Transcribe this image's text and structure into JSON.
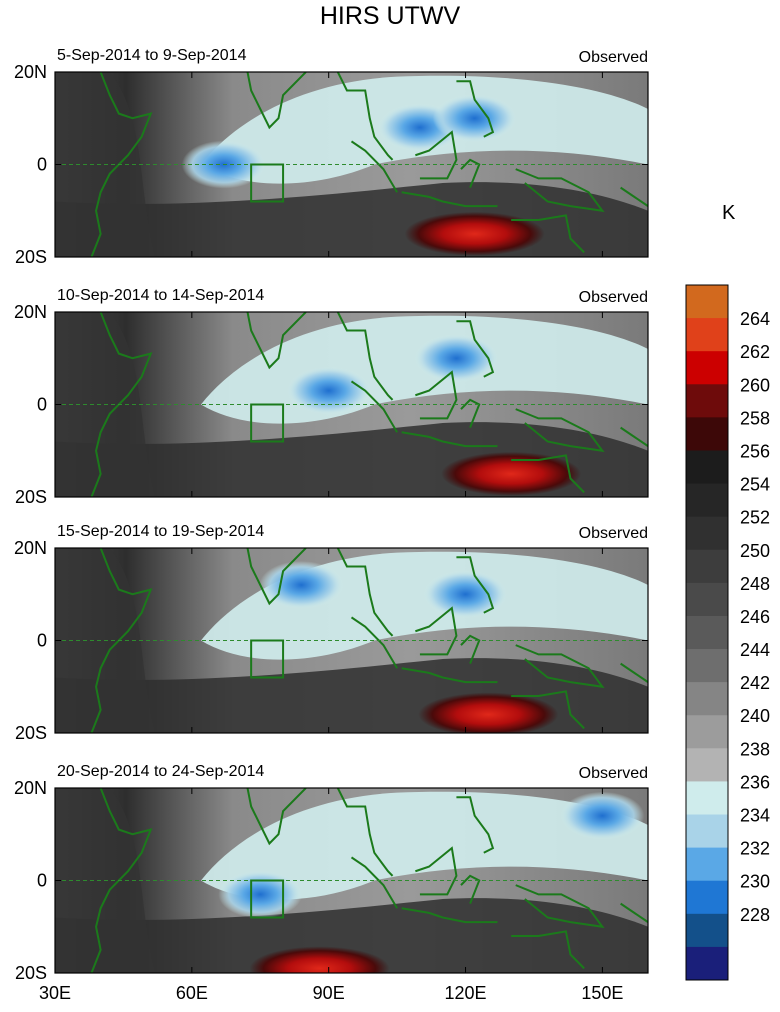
{
  "title": "HIRS UTWV",
  "units_label": "K",
  "x_ticks": [
    "30E",
    "60E",
    "90E",
    "120E",
    "150E"
  ],
  "x_tick_lon": [
    30,
    60,
    90,
    120,
    150
  ],
  "y_ticks": [
    "20N",
    "0",
    "20S"
  ],
  "y_tick_lat": [
    20,
    0,
    -20
  ],
  "panels": [
    {
      "period": "5-Sep-2014 to 9-Sep-2014",
      "tag": "Observed"
    },
    {
      "period": "10-Sep-2014 to 14-Sep-2014",
      "tag": "Observed"
    },
    {
      "period": "15-Sep-2014 to 19-Sep-2014",
      "tag": "Observed"
    },
    {
      "period": "20-Sep-2014 to 24-Sep-2014",
      "tag": "Observed"
    }
  ],
  "colorbar": {
    "labels": [
      "264",
      "262",
      "260",
      "258",
      "256",
      "254",
      "252",
      "250",
      "248",
      "246",
      "244",
      "242",
      "240",
      "238",
      "236",
      "234",
      "232",
      "230",
      "228"
    ],
    "colors": [
      "#d2691e",
      "#e0411a",
      "#cc0000",
      "#6e0b0b",
      "#3d0808",
      "#1c1c1c",
      "#262626",
      "#303030",
      "#3d3d3d",
      "#4a4a4a",
      "#5a5a5a",
      "#6e6e6e",
      "#858585",
      "#9c9c9c",
      "#b3b3b3",
      "#cfecec",
      "#a9d3e8",
      "#5aa8e6",
      "#1f77d4",
      "#13508a",
      "#1a1f7a"
    ]
  },
  "chart_data": {
    "type": "heatmap",
    "title": "HIRS UTWV",
    "xlabel": "",
    "ylabel": "",
    "xlim": [
      30,
      160
    ],
    "ylim": [
      -20,
      20
    ],
    "legend": "right",
    "units": "K",
    "levels": [
      228,
      230,
      232,
      234,
      236,
      238,
      240,
      242,
      244,
      246,
      248,
      250,
      252,
      254,
      256,
      258,
      260,
      262,
      264
    ],
    "panels": [
      {
        "period": "5-Sep-2014 to 9-Sep-2014",
        "label": "Observed",
        "features": [
          {
            "kind": "moist",
            "lon": 67,
            "lat": 0,
            "value": 232
          },
          {
            "kind": "moist",
            "lon": 110,
            "lat": 8,
            "value": 234
          },
          {
            "kind": "moist",
            "lon": 122,
            "lat": 10,
            "value": 232
          },
          {
            "kind": "dry",
            "lon": 122,
            "lat": -15,
            "value": 262
          }
        ]
      },
      {
        "period": "10-Sep-2014 to 14-Sep-2014",
        "label": "Observed",
        "features": [
          {
            "kind": "moist",
            "lon": 90,
            "lat": 3,
            "value": 230
          },
          {
            "kind": "moist",
            "lon": 118,
            "lat": 10,
            "value": 232
          },
          {
            "kind": "dry",
            "lon": 130,
            "lat": -15,
            "value": 262
          }
        ]
      },
      {
        "period": "15-Sep-2014 to 19-Sep-2014",
        "label": "Observed",
        "features": [
          {
            "kind": "moist",
            "lon": 84,
            "lat": 12,
            "value": 230
          },
          {
            "kind": "moist",
            "lon": 120,
            "lat": 10,
            "value": 230
          },
          {
            "kind": "dry",
            "lon": 125,
            "lat": -16,
            "value": 258
          }
        ]
      },
      {
        "period": "20-Sep-2014 to 24-Sep-2014",
        "label": "Observed",
        "features": [
          {
            "kind": "moist",
            "lon": 75,
            "lat": -3,
            "value": 230
          },
          {
            "kind": "moist",
            "lon": 150,
            "lat": 14,
            "value": 230
          },
          {
            "kind": "dry",
            "lon": 88,
            "lat": -19,
            "value": 264
          }
        ]
      }
    ]
  }
}
